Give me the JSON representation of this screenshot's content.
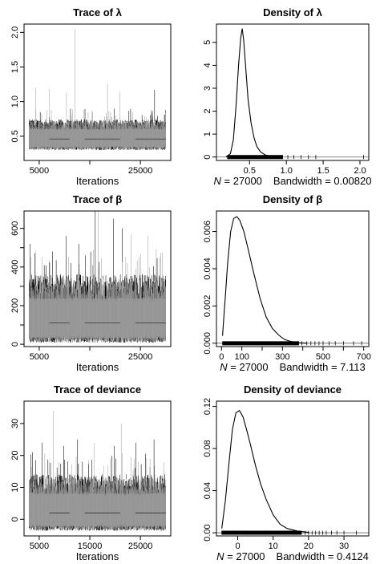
{
  "chart_data": [
    {
      "type": "line",
      "variant": "trace",
      "title": "Trace of λ",
      "xlabel": "Iterations",
      "xlim": [
        2000,
        31000
      ],
      "ylim": [
        0.15,
        2.12
      ],
      "xticks": [
        5000,
        15000,
        25000
      ],
      "xtick_labels": [
        "5000",
        "",
        "25000"
      ],
      "yticks": [
        0.5,
        1.0,
        1.5,
        2.0
      ],
      "ytick_labels": [
        "0.5",
        "1.0",
        "1.5",
        "2.0"
      ],
      "band": {
        "mean": 0.46,
        "low": 0.3,
        "high": 0.72
      },
      "spikes": [
        {
          "x": 4300,
          "y": 1.2
        },
        {
          "x": 7000,
          "y": 1.18
        },
        {
          "x": 10400,
          "y": 1.13
        },
        {
          "x": 12100,
          "y": 2.05
        },
        {
          "x": 18500,
          "y": 1.25
        },
        {
          "x": 21000,
          "y": 1.14
        },
        {
          "x": 27800,
          "y": 1.17
        }
      ],
      "colors": {
        "series": [
          "#000000",
          "#999999"
        ]
      }
    },
    {
      "type": "area",
      "variant": "density",
      "title": "Density of λ",
      "subtitle_n": "N = 27000",
      "subtitle_bw": "Bandwidth = 0.00820",
      "xlim": [
        0.05,
        2.12
      ],
      "ylim": [
        -0.15,
        5.8
      ],
      "xticks": [
        0.5,
        1.0,
        1.5,
        2.0
      ],
      "xtick_labels": [
        "0.5",
        "1.0",
        "1.5",
        "2.0"
      ],
      "yticks": [
        0,
        1,
        2,
        3,
        4,
        5
      ],
      "ytick_labels": [
        "0",
        "1",
        "2",
        "3",
        "4",
        "5"
      ],
      "curve": {
        "x": [
          0.18,
          0.24,
          0.28,
          0.32,
          0.35,
          0.38,
          0.4,
          0.42,
          0.45,
          0.48,
          0.52,
          0.56,
          0.6,
          0.65,
          0.72,
          0.8,
          0.9
        ],
        "y": [
          0.0,
          0.15,
          0.75,
          2.4,
          4.0,
          5.2,
          5.6,
          5.1,
          3.8,
          2.5,
          1.5,
          0.85,
          0.45,
          0.22,
          0.08,
          0.03,
          0.0
        ]
      },
      "rug_range": [
        0.2,
        0.95
      ],
      "rug_extra": [
        1.02,
        1.1,
        1.2,
        1.3,
        1.4,
        2.05
      ]
    },
    {
      "type": "line",
      "variant": "trace",
      "title": "Trace of β",
      "xlabel": "Iterations",
      "xlim": [
        2000,
        31000
      ],
      "ylim": [
        -12,
        690
      ],
      "xticks": [
        5000,
        15000,
        25000
      ],
      "xtick_labels": [
        "5000",
        "",
        "25000"
      ],
      "yticks": [
        0,
        100,
        200,
        300,
        400,
        500,
        600
      ],
      "ytick_labels": [
        "0",
        "",
        "200",
        "",
        "400",
        "",
        "600"
      ],
      "band": {
        "mean": 110,
        "low": 8,
        "high": 340
      },
      "spikes": [
        {
          "x": 3200,
          "y": 520
        },
        {
          "x": 7600,
          "y": 480
        },
        {
          "x": 10300,
          "y": 560
        },
        {
          "x": 12800,
          "y": 520
        },
        {
          "x": 16100,
          "y": 690
        },
        {
          "x": 16700,
          "y": 690
        },
        {
          "x": 19700,
          "y": 650
        },
        {
          "x": 21400,
          "y": 600
        },
        {
          "x": 23100,
          "y": 570
        },
        {
          "x": 26500,
          "y": 560
        }
      ],
      "colors": {
        "series": [
          "#000000",
          "#999999"
        ]
      }
    },
    {
      "type": "area",
      "variant": "density",
      "title": "Density of β",
      "subtitle_n": "N = 27000",
      "subtitle_bw": "Bandwidth = 7.113",
      "xlim": [
        -25,
        725
      ],
      "ylim": [
        -0.00018,
        0.0071
      ],
      "xticks": [
        0,
        100,
        200,
        300,
        400,
        500,
        600,
        700
      ],
      "xtick_labels": [
        "0",
        "100",
        "",
        "300",
        "",
        "500",
        "",
        "700"
      ],
      "yticks": [
        0.0,
        0.002,
        0.004,
        0.006
      ],
      "ytick_labels": [
        "0.000",
        "0.002",
        "0.004",
        "0.006"
      ],
      "curve": {
        "x": [
          5,
          10,
          20,
          30,
          45,
          60,
          75,
          90,
          110,
          130,
          160,
          190,
          220,
          250,
          280,
          310,
          340,
          380,
          420
        ],
        "y": [
          0.0004,
          0.0012,
          0.0027,
          0.0043,
          0.006,
          0.0067,
          0.0068,
          0.0066,
          0.006,
          0.0051,
          0.0037,
          0.0024,
          0.0014,
          0.0008,
          0.00045,
          0.0002,
          0.0001,
          3e-05,
          0.0
        ]
      },
      "rug_range": [
        5,
        380
      ],
      "rug_extra": [
        395,
        420,
        440,
        460,
        480,
        500,
        530,
        560,
        600,
        650,
        690
      ]
    },
    {
      "type": "line",
      "variant": "trace",
      "title": "Trace of deviance",
      "xlabel": "Iterations",
      "xlim": [
        2000,
        31000
      ],
      "ylim": [
        -5.2,
        37
      ],
      "xticks": [
        5000,
        15000,
        25000
      ],
      "xtick_labels": [
        "5000",
        "15000",
        "25000"
      ],
      "yticks": [
        0,
        10,
        20,
        30
      ],
      "ytick_labels": [
        "0",
        "10",
        "20",
        "30"
      ],
      "band": {
        "mean": 2,
        "low": -3.6,
        "high": 13
      },
      "spikes": [
        {
          "x": 3700,
          "y": 21
        },
        {
          "x": 5600,
          "y": 24
        },
        {
          "x": 7800,
          "y": 34
        },
        {
          "x": 9900,
          "y": 23
        },
        {
          "x": 12600,
          "y": 25
        },
        {
          "x": 15900,
          "y": 24
        },
        {
          "x": 19800,
          "y": 23
        },
        {
          "x": 21200,
          "y": 30
        },
        {
          "x": 24100,
          "y": 24
        },
        {
          "x": 27700,
          "y": 25
        }
      ],
      "colors": {
        "series": [
          "#000000",
          "#999999"
        ]
      }
    },
    {
      "type": "area",
      "variant": "density",
      "title": "Density of deviance",
      "subtitle_n": "N = 27000",
      "subtitle_bw": "Bandwidth = 0.4124",
      "xlim": [
        -6,
        37
      ],
      "ylim": [
        -0.003,
        0.125
      ],
      "xticks": [
        0,
        10,
        20,
        30
      ],
      "xtick_labels": [
        "0",
        "10",
        "20",
        "30"
      ],
      "yticks": [
        0.0,
        0.04,
        0.08,
        0.12
      ],
      "ytick_labels": [
        "0.00",
        "0.04",
        "0.08",
        "0.12"
      ],
      "curve": {
        "x": [
          -4.5,
          -3.5,
          -2.5,
          -1.5,
          -0.5,
          0.5,
          1.5,
          2.5,
          3.5,
          5,
          6.5,
          8,
          10,
          12,
          14,
          17,
          20
        ],
        "y": [
          0.004,
          0.03,
          0.065,
          0.098,
          0.114,
          0.116,
          0.11,
          0.098,
          0.085,
          0.064,
          0.046,
          0.032,
          0.017,
          0.008,
          0.004,
          0.0015,
          0.0004
        ]
      },
      "rug_range": [
        -4.5,
        18
      ],
      "rug_extra": [
        19,
        20,
        21,
        22,
        23,
        24,
        25,
        26.5,
        28,
        30,
        33.5
      ]
    }
  ]
}
